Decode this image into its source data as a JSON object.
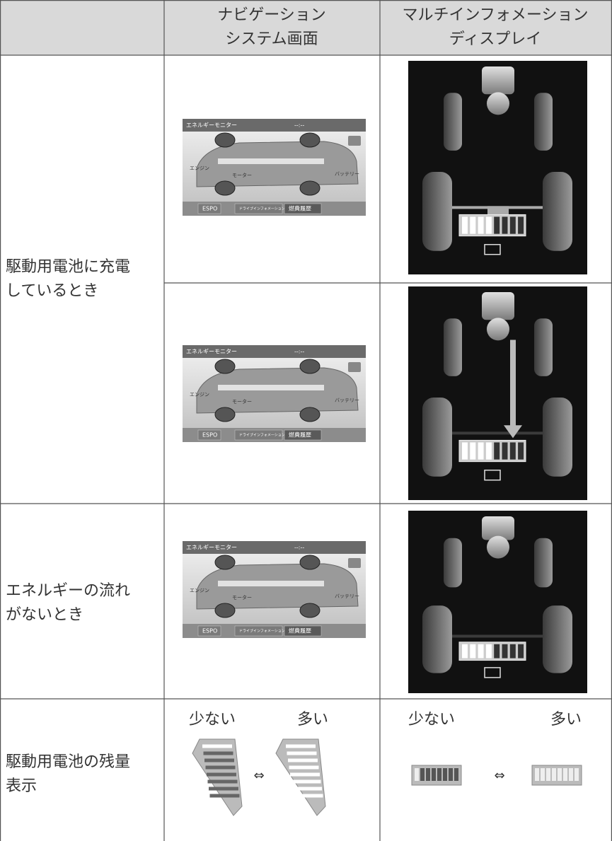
{
  "header": {
    "nav": [
      "ナビゲーション",
      "システム画面"
    ],
    "mid": [
      "マルチインフォメーション",
      "ディスプレイ"
    ]
  },
  "rows": [
    {
      "label": [
        "駆動用電池に充電",
        "しているとき"
      ]
    },
    {
      "label": [
        "エネルギーの流れ",
        "がないとき"
      ]
    },
    {
      "label": [
        "駆動用電池の残量",
        "表示"
      ]
    }
  ],
  "level": {
    "low": "少ない",
    "high": "多い",
    "arrow": "⇔"
  },
  "nav_screen": {
    "title": "エネルギーモニター",
    "clock": "--:--",
    "engine": "エンジン",
    "motor": "モーター",
    "battery": "バッテリー",
    "tabs": [
      "ESPO",
      "ドライブインフォメーション",
      "燃費履歴"
    ]
  }
}
